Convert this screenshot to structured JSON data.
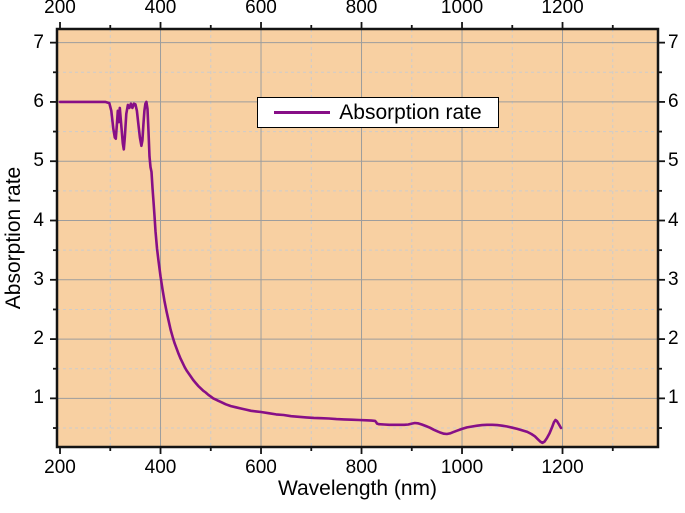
{
  "chart_data": {
    "type": "line",
    "title": "",
    "xlabel": "Wavelength (nm)",
    "ylabel": "Absorption rate",
    "legend": {
      "position": "top-center",
      "entries": [
        {
          "label": "Absorption rate",
          "color": "#870f87"
        }
      ]
    },
    "xlim": [
      194,
      1390
    ],
    "ylim": [
      0.18,
      7.23
    ],
    "x_ticks_major": [
      200,
      400,
      600,
      800,
      1000,
      1200
    ],
    "x_ticks_minor": [
      300,
      500,
      700,
      900,
      1100,
      1300
    ],
    "y_ticks_major": [
      1,
      2,
      3,
      4,
      5,
      6,
      7
    ],
    "y_ticks_minor": [
      0.5,
      1.5,
      2.5,
      3.5,
      4.5,
      5.5,
      6.5
    ],
    "grid": {
      "major": "solid",
      "minor": "dashed"
    },
    "axes_labeled_sides": [
      "top",
      "bottom",
      "left",
      "right"
    ],
    "colors": {
      "plot_bg": "#f8d0a2",
      "line": "#870f87",
      "grid_major": "#9d9d9d",
      "grid_minor": "#cccccc",
      "frame": "#141414",
      "text": "#000000",
      "legend_bg": "#ffffff",
      "legend_border": "#000000"
    },
    "series": [
      {
        "name": "Absorption rate",
        "color": "#870f87",
        "points": [
          [
            200,
            6
          ],
          [
            240,
            6
          ],
          [
            270,
            6
          ],
          [
            290,
            6
          ],
          [
            298,
            5.98
          ],
          [
            302,
            5.85
          ],
          [
            306,
            5.55
          ],
          [
            309,
            5.4
          ],
          [
            311,
            5.38
          ],
          [
            313,
            5.6
          ],
          [
            315,
            5.85
          ],
          [
            317,
            5.66
          ],
          [
            319,
            5.9
          ],
          [
            322,
            5.6
          ],
          [
            325,
            5.3
          ],
          [
            327,
            5.2
          ],
          [
            329,
            5.4
          ],
          [
            332,
            5.8
          ],
          [
            335,
            5.95
          ],
          [
            338,
            5.9
          ],
          [
            341,
            5.97
          ],
          [
            344,
            5.9
          ],
          [
            347,
            5.97
          ],
          [
            350,
            5.96
          ],
          [
            353,
            5.85
          ],
          [
            356,
            5.62
          ],
          [
            359,
            5.4
          ],
          [
            362,
            5.26
          ],
          [
            364,
            5.35
          ],
          [
            366,
            5.62
          ],
          [
            368,
            5.85
          ],
          [
            370,
            5.97
          ],
          [
            372,
            6.0
          ],
          [
            374,
            5.88
          ],
          [
            376,
            5.5
          ],
          [
            378,
            5.08
          ],
          [
            380,
            4.9
          ],
          [
            382,
            4.82
          ],
          [
            384,
            4.55
          ],
          [
            386,
            4.32
          ],
          [
            388,
            4.08
          ],
          [
            390,
            3.82
          ],
          [
            393,
            3.53
          ],
          [
            396,
            3.32
          ],
          [
            400,
            3.06
          ],
          [
            404,
            2.84
          ],
          [
            408,
            2.64
          ],
          [
            412,
            2.47
          ],
          [
            416,
            2.31
          ],
          [
            420,
            2.16
          ],
          [
            424,
            2.04
          ],
          [
            428,
            1.93
          ],
          [
            432,
            1.84
          ],
          [
            436,
            1.75
          ],
          [
            440,
            1.67
          ],
          [
            444,
            1.6
          ],
          [
            448,
            1.53
          ],
          [
            452,
            1.47
          ],
          [
            456,
            1.42
          ],
          [
            460,
            1.37
          ],
          [
            465,
            1.31
          ],
          [
            470,
            1.26
          ],
          [
            475,
            1.21
          ],
          [
            480,
            1.17
          ],
          [
            485,
            1.13
          ],
          [
            490,
            1.1
          ],
          [
            495,
            1.06
          ],
          [
            500,
            1.03
          ],
          [
            505,
            1.0
          ],
          [
            510,
            0.98
          ],
          [
            515,
            0.96
          ],
          [
            520,
            0.94
          ],
          [
            530,
            0.9
          ],
          [
            540,
            0.87
          ],
          [
            550,
            0.85
          ],
          [
            560,
            0.83
          ],
          [
            570,
            0.81
          ],
          [
            580,
            0.79
          ],
          [
            590,
            0.78
          ],
          [
            600,
            0.77
          ],
          [
            615,
            0.75
          ],
          [
            630,
            0.73
          ],
          [
            645,
            0.72
          ],
          [
            660,
            0.7
          ],
          [
            675,
            0.69
          ],
          [
            690,
            0.68
          ],
          [
            705,
            0.67
          ],
          [
            720,
            0.665
          ],
          [
            735,
            0.66
          ],
          [
            750,
            0.65
          ],
          [
            765,
            0.645
          ],
          [
            780,
            0.64
          ],
          [
            795,
            0.635
          ],
          [
            810,
            0.63
          ],
          [
            820,
            0.625
          ],
          [
            827,
            0.62
          ],
          [
            829,
            0.6
          ],
          [
            831,
            0.575
          ],
          [
            835,
            0.565
          ],
          [
            845,
            0.56
          ],
          [
            855,
            0.555
          ],
          [
            865,
            0.555
          ],
          [
            875,
            0.555
          ],
          [
            885,
            0.555
          ],
          [
            893,
            0.56
          ],
          [
            900,
            0.575
          ],
          [
            906,
            0.585
          ],
          [
            912,
            0.58
          ],
          [
            920,
            0.56
          ],
          [
            928,
            0.535
          ],
          [
            936,
            0.505
          ],
          [
            944,
            0.47
          ],
          [
            952,
            0.44
          ],
          [
            958,
            0.42
          ],
          [
            964,
            0.405
          ],
          [
            970,
            0.4
          ],
          [
            976,
            0.41
          ],
          [
            982,
            0.43
          ],
          [
            990,
            0.455
          ],
          [
            1000,
            0.485
          ],
          [
            1010,
            0.51
          ],
          [
            1020,
            0.525
          ],
          [
            1030,
            0.54
          ],
          [
            1040,
            0.55
          ],
          [
            1050,
            0.555
          ],
          [
            1060,
            0.555
          ],
          [
            1070,
            0.55
          ],
          [
            1080,
            0.54
          ],
          [
            1090,
            0.525
          ],
          [
            1100,
            0.505
          ],
          [
            1110,
            0.485
          ],
          [
            1120,
            0.46
          ],
          [
            1130,
            0.435
          ],
          [
            1138,
            0.4
          ],
          [
            1145,
            0.36
          ],
          [
            1151,
            0.31
          ],
          [
            1156,
            0.27
          ],
          [
            1160,
            0.25
          ],
          [
            1164,
            0.27
          ],
          [
            1169,
            0.33
          ],
          [
            1174,
            0.41
          ],
          [
            1179,
            0.51
          ],
          [
            1183,
            0.6
          ],
          [
            1186,
            0.635
          ],
          [
            1189,
            0.615
          ],
          [
            1193,
            0.56
          ],
          [
            1197,
            0.5
          ]
        ]
      }
    ]
  }
}
